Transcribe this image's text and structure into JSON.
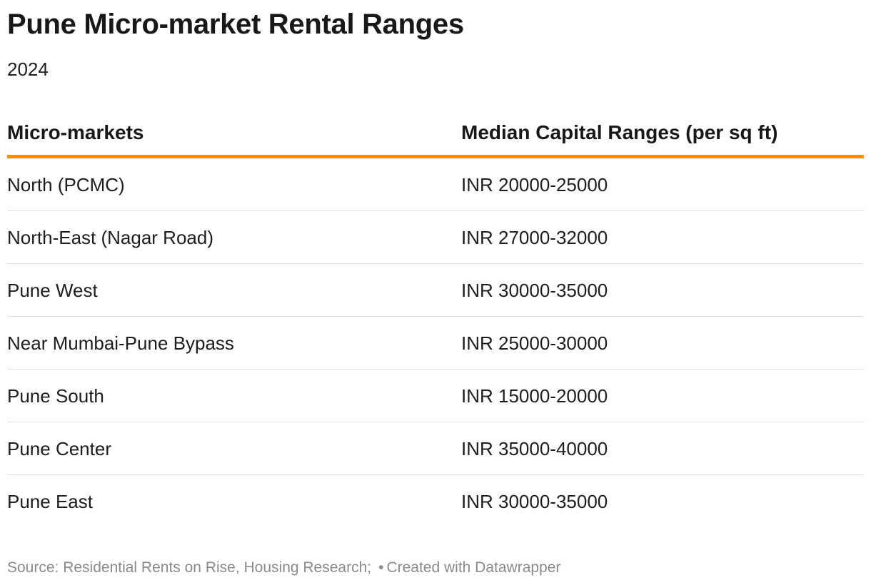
{
  "title": "Pune Micro-market Rental Ranges",
  "subtitle": "2024",
  "accent_color": "#f39200",
  "chart_data": {
    "type": "table",
    "columns": [
      "Micro-markets",
      "Median Capital Ranges (per sq ft)"
    ],
    "rows": [
      [
        "North (PCMC)",
        "INR 20000-25000"
      ],
      [
        "North-East (Nagar Road)",
        "INR 27000-32000"
      ],
      [
        "Pune West",
        "INR 30000-35000"
      ],
      [
        "Near Mumbai-Pune Bypass",
        "INR 25000-30000"
      ],
      [
        "Pune South",
        "INR 15000-20000"
      ],
      [
        "Pune Center",
        "INR 35000-40000"
      ],
      [
        "Pune East",
        "INR 30000-35000"
      ]
    ]
  },
  "footer": {
    "source": "Source: Residential Rents on Rise, Housing Research;",
    "separator": "•",
    "credit": "Created with Datawrapper"
  }
}
